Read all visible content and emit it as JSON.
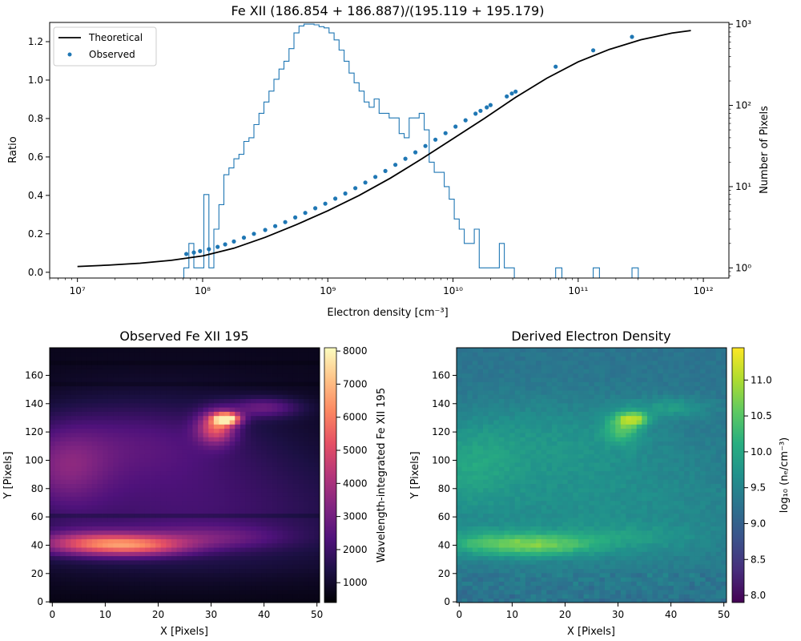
{
  "figure": {
    "top_title": "Fe XII (186.854 + 186.887)/(195.119 + 195.179)",
    "ratio_ylabel": "Ratio",
    "counts_ylabel": "Number of Pixels",
    "density_xlabel": "Electron density [cm⁻³]",
    "legend_theoretical": "Theoretical",
    "legend_observed": "Observed",
    "left_title": "Observed Fe XII 195",
    "right_title": "Derived Electron Density",
    "map_xlabel": "X [Pixels]",
    "map_ylabel": "Y [Pixels]",
    "intensity_cbar_label": "Wavelength-integrated Fe XII 195",
    "density_cbar_label": "log₁₀ (nₑ/cm⁻³)"
  },
  "colors": {
    "theory_line": "#000000",
    "observed_points": "#1f77b4",
    "histogram": "#1f77b4",
    "magma_cmap": [
      "#000004",
      "#1c1044",
      "#4f127b",
      "#812581",
      "#b5367a",
      "#e55064",
      "#fb8761",
      "#fec287",
      "#fcfdbf"
    ],
    "viridis_cmap": [
      "#440154",
      "#472d7b",
      "#3b528b",
      "#2c728e",
      "#21918c",
      "#28ae80",
      "#5ec962",
      "#addc30",
      "#fde725"
    ]
  },
  "chart_data": [
    {
      "type": "line",
      "title": "Fe XII (186.854 + 186.887)/(195.119 + 195.179)",
      "xlabel": "Electron density [cm⁻³]",
      "ylabel": "Ratio",
      "xscale": "log",
      "xlim": [
        6000000.0,
        1600000000000.0
      ],
      "ylim": [
        -0.03,
        1.3
      ],
      "x_ticks": [
        {
          "value": 10000000.0,
          "label": "10⁷"
        },
        {
          "value": 100000000.0,
          "label": "10⁸"
        },
        {
          "value": 1000000000.0,
          "label": "10⁹"
        },
        {
          "value": 10000000000.0,
          "label": "10¹⁰"
        },
        {
          "value": 100000000000.0,
          "label": "10¹¹"
        },
        {
          "value": 1000000000000.0,
          "label": "10¹²"
        }
      ],
      "y_ticks": [
        "0.0",
        "0.2",
        "0.4",
        "0.6",
        "0.8",
        "1.0",
        "1.2"
      ],
      "series": [
        {
          "name": "Theoretical",
          "kind": "line",
          "log10_ne": [
            7.0,
            7.25,
            7.5,
            7.75,
            8.0,
            8.25,
            8.5,
            8.75,
            9.0,
            9.25,
            9.5,
            9.75,
            10.0,
            10.25,
            10.5,
            10.75,
            11.0,
            11.25,
            11.5,
            11.75,
            11.9
          ],
          "ratio": [
            0.03,
            0.037,
            0.047,
            0.062,
            0.085,
            0.125,
            0.182,
            0.248,
            0.32,
            0.4,
            0.49,
            0.59,
            0.695,
            0.8,
            0.91,
            1.01,
            1.095,
            1.16,
            1.21,
            1.245,
            1.258
          ]
        },
        {
          "name": "Observed",
          "kind": "scatter",
          "log10_ne": [
            7.87,
            7.93,
            7.98,
            8.05,
            8.12,
            8.18,
            8.25,
            8.33,
            8.41,
            8.5,
            8.58,
            8.66,
            8.74,
            8.82,
            8.9,
            8.98,
            9.06,
            9.14,
            9.22,
            9.3,
            9.38,
            9.46,
            9.54,
            9.62,
            9.7,
            9.78,
            9.86,
            9.94,
            10.02,
            10.1,
            10.18,
            10.22,
            10.27,
            10.3,
            10.43,
            10.47,
            10.5,
            10.82,
            11.12,
            11.43
          ],
          "ratio": [
            0.095,
            0.103,
            0.11,
            0.12,
            0.132,
            0.145,
            0.16,
            0.18,
            0.2,
            0.22,
            0.24,
            0.261,
            0.285,
            0.309,
            0.333,
            0.357,
            0.383,
            0.41,
            0.438,
            0.467,
            0.496,
            0.527,
            0.559,
            0.591,
            0.624,
            0.657,
            0.69,
            0.724,
            0.758,
            0.791,
            0.825,
            0.84,
            0.858,
            0.87,
            0.915,
            0.93,
            0.94,
            1.07,
            1.155,
            1.225
          ]
        }
      ]
    },
    {
      "type": "bar",
      "title": "",
      "ylabel": "Number of Pixels",
      "yscale": "log",
      "ylim": [
        0.75,
        1050
      ],
      "y_ticks": [
        {
          "value": 1,
          "label": "10⁰"
        },
        {
          "value": 10,
          "label": "10¹"
        },
        {
          "value": 100,
          "label": "10²"
        },
        {
          "value": 1000,
          "label": "10³"
        }
      ],
      "bin_edges_log10_ne": [
        7.85,
        7.89,
        7.93,
        7.97,
        8.01,
        8.05,
        8.09,
        8.13,
        8.17,
        8.21,
        8.25,
        8.29,
        8.33,
        8.37,
        8.41,
        8.45,
        8.49,
        8.53,
        8.57,
        8.61,
        8.65,
        8.69,
        8.73,
        8.77,
        8.81,
        8.85,
        8.89,
        8.93,
        8.97,
        9.01,
        9.05,
        9.09,
        9.13,
        9.17,
        9.21,
        9.25,
        9.29,
        9.33,
        9.37,
        9.41,
        9.45,
        9.49,
        9.53,
        9.57,
        9.61,
        9.65,
        9.69,
        9.73,
        9.77,
        9.81,
        9.85,
        9.89,
        9.93,
        9.97,
        10.01,
        10.05,
        10.09,
        10.13,
        10.17,
        10.21,
        10.25,
        10.29,
        10.33,
        10.37,
        10.41,
        10.45,
        10.49
      ],
      "counts": [
        1,
        2,
        1,
        1,
        8,
        1,
        3,
        6,
        14,
        17,
        22,
        25,
        36,
        40,
        58,
        80,
        110,
        150,
        210,
        280,
        350,
        500,
        780,
        950,
        1000,
        1000,
        980,
        930,
        900,
        780,
        640,
        480,
        350,
        250,
        190,
        150,
        110,
        95,
        120,
        80,
        80,
        70,
        70,
        45,
        40,
        70,
        70,
        80,
        50,
        20,
        15,
        15,
        10,
        7,
        4,
        3,
        2,
        2,
        3,
        1,
        1,
        1,
        1,
        2,
        1,
        1
      ],
      "isolated_bins": [
        {
          "from_log10_ne": 10.82,
          "to_log10_ne": 10.87,
          "count": 1
        },
        {
          "from_log10_ne": 11.12,
          "to_log10_ne": 11.17,
          "count": 1
        },
        {
          "from_log10_ne": 11.43,
          "to_log10_ne": 11.48,
          "count": 1
        }
      ]
    },
    {
      "type": "heatmap",
      "title": "Observed Fe XII 195",
      "xlabel": "X [Pixels]",
      "ylabel": "Y [Pixels]",
      "xlim": [
        -0.5,
        50.5
      ],
      "ylim": [
        -0.5,
        179.5
      ],
      "x_ticks": [
        "0",
        "10",
        "20",
        "30",
        "40",
        "50"
      ],
      "y_ticks": [
        "0",
        "20",
        "40",
        "60",
        "80",
        "100",
        "120",
        "140",
        "160"
      ],
      "colormap": "magma",
      "colorbar": {
        "label": "Wavelength-integrated Fe XII 195",
        "range": [
          400,
          8100
        ],
        "ticks": [
          "1000",
          "2000",
          "3000",
          "4000",
          "5000",
          "6000",
          "7000",
          "8000"
        ]
      }
    },
    {
      "type": "heatmap",
      "title": "Derived Electron Density",
      "xlabel": "X [Pixels]",
      "ylabel": "Y [Pixels]",
      "xlim": [
        -0.5,
        50.5
      ],
      "ylim": [
        -0.5,
        179.5
      ],
      "x_ticks": [
        "0",
        "10",
        "20",
        "30",
        "40",
        "50"
      ],
      "y_ticks": [
        "0",
        "20",
        "40",
        "60",
        "80",
        "100",
        "120",
        "140",
        "160"
      ],
      "colormap": "viridis",
      "colorbar": {
        "label": "log₁₀ (nₑ/cm⁻³)",
        "range": [
          7.9,
          11.45
        ],
        "ticks": [
          "8.0",
          "8.5",
          "9.0",
          "9.5",
          "10.0",
          "10.5",
          "11.0"
        ]
      }
    }
  ]
}
